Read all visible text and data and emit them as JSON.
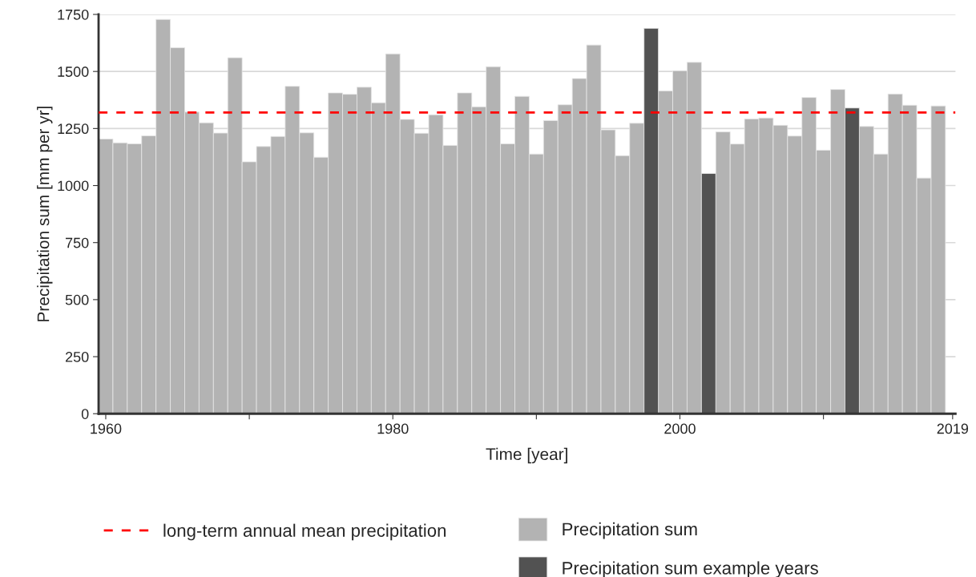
{
  "chart_data": {
    "type": "bar",
    "xlabel": "Time [year]",
    "ylabel": "Precipitation sum [mm per yr]",
    "x": [
      1960,
      1961,
      1962,
      1963,
      1964,
      1965,
      1966,
      1967,
      1968,
      1969,
      1970,
      1971,
      1972,
      1973,
      1974,
      1975,
      1976,
      1977,
      1978,
      1979,
      1980,
      1981,
      1982,
      1983,
      1984,
      1985,
      1986,
      1987,
      1988,
      1989,
      1990,
      1991,
      1992,
      1993,
      1994,
      1995,
      1996,
      1997,
      1998,
      1999,
      2000,
      2001,
      2002,
      2003,
      2004,
      2005,
      2006,
      2007,
      2008,
      2009,
      2010,
      2011,
      2012,
      2013,
      2014,
      2015,
      2016,
      2017,
      2018
    ],
    "series": [
      {
        "name": "Precipitation sum",
        "color": "#b3b3b3",
        "values": [
          1204,
          1187,
          1183,
          1218,
          1728,
          1604,
          1322,
          1275,
          1230,
          1560,
          1104,
          1171,
          1215,
          1435,
          1231,
          1124,
          1406,
          1400,
          1431,
          1363,
          1577,
          1290,
          1229,
          1310,
          1176,
          1406,
          1345,
          1521,
          1183,
          1391,
          1138,
          1285,
          1354,
          1469,
          1616,
          1244,
          1131,
          1273,
          null,
          1415,
          1503,
          1540,
          null,
          1235,
          1182,
          1292,
          1296,
          1264,
          1217,
          1386,
          1155,
          1421,
          null,
          1259,
          1138,
          1401,
          1352,
          1033,
          1349
        ]
      },
      {
        "name": "Precipitation sum example years",
        "color": "#525252",
        "values": [
          null,
          null,
          null,
          null,
          null,
          null,
          null,
          null,
          null,
          null,
          null,
          null,
          null,
          null,
          null,
          null,
          null,
          null,
          null,
          null,
          null,
          null,
          null,
          null,
          null,
          null,
          null,
          null,
          null,
          null,
          null,
          null,
          null,
          null,
          null,
          null,
          null,
          null,
          1689,
          null,
          null,
          null,
          1053,
          null,
          null,
          null,
          null,
          null,
          null,
          null,
          null,
          null,
          1340,
          null,
          null,
          null,
          null,
          null,
          null
        ]
      }
    ],
    "ref_lines": [
      {
        "axis": "y",
        "value": 1320,
        "label": "long-term annual mean precipitation",
        "color": "#ff0000",
        "line_style": "dashed"
      }
    ],
    "xlim": [
      1959.5,
      2019.2
    ],
    "xticks": [
      1960,
      {
        "value": 1970,
        "label": null
      },
      1980,
      {
        "value": 1990,
        "label": null
      },
      2000,
      {
        "value": 2010,
        "label": null
      },
      2019
    ],
    "ylim": [
      0,
      1750
    ],
    "yticks": [
      0,
      250,
      500,
      750,
      1000,
      1250,
      1500,
      1750
    ],
    "grid": "y",
    "legend": "bottom"
  }
}
